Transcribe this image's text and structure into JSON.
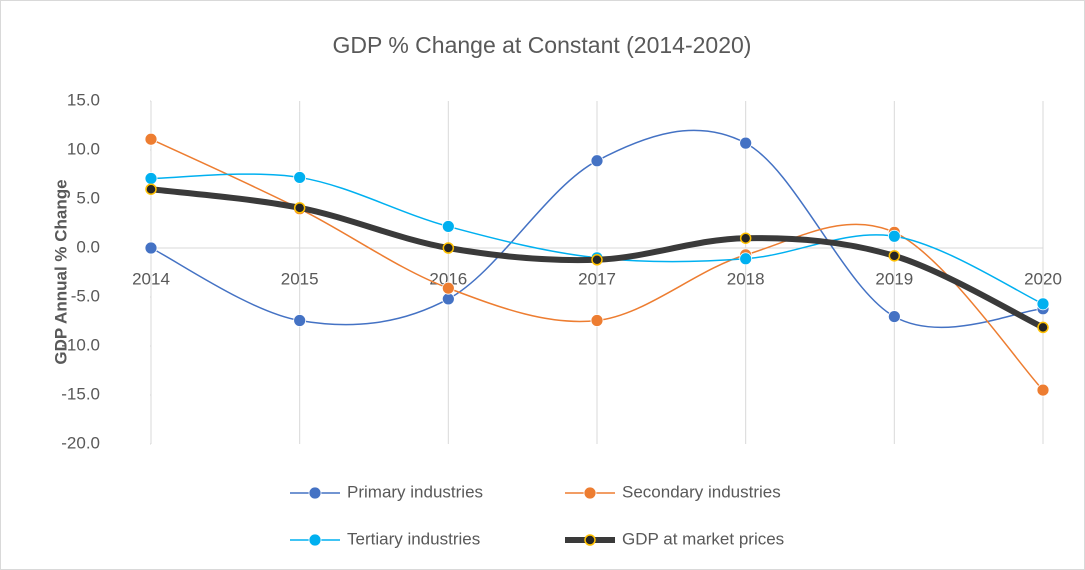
{
  "chart_data": {
    "type": "line",
    "title": "GDP % Change at Constant (2014-2020)",
    "y_label": "GDP Annual % Change",
    "categories": [
      "2014",
      "2015",
      "2016",
      "2017",
      "2018",
      "2019",
      "2020"
    ],
    "series": [
      {
        "name": "Primary industries",
        "color": "#4472c4",
        "values": [
          0.0,
          -7.4,
          -5.2,
          8.9,
          10.7,
          -7.0,
          -6.2
        ]
      },
      {
        "name": "Secondary industries",
        "color": "#ed7d31",
        "values": [
          11.1,
          4.0,
          -4.1,
          -7.4,
          -0.7,
          1.6,
          -14.5
        ]
      },
      {
        "name": "Tertiary industries",
        "color": "#00b0f0",
        "values": [
          7.1,
          7.2,
          2.2,
          -1.0,
          -1.1,
          1.2,
          -5.7
        ]
      },
      {
        "name": "GDP at market prices",
        "color": "#3a3a3a",
        "marker_color": "#ffc000",
        "values": [
          6.0,
          4.1,
          0.0,
          -1.2,
          1.0,
          -0.8,
          -8.1
        ]
      }
    ],
    "ylim": [
      -20,
      15
    ],
    "yticks": [
      {
        "value": -20,
        "label": "-20.0"
      },
      {
        "value": -15,
        "label": "-15.0"
      },
      {
        "value": -10,
        "label": "-10.0"
      },
      {
        "value": -5,
        "label": "-5.0"
      },
      {
        "value": 0,
        "label": "0.0"
      },
      {
        "value": 5,
        "label": "5.0"
      },
      {
        "value": 10,
        "label": "10.0"
      },
      {
        "value": 15,
        "label": "15.0"
      }
    ],
    "smooth": true,
    "legend": "bottom"
  }
}
